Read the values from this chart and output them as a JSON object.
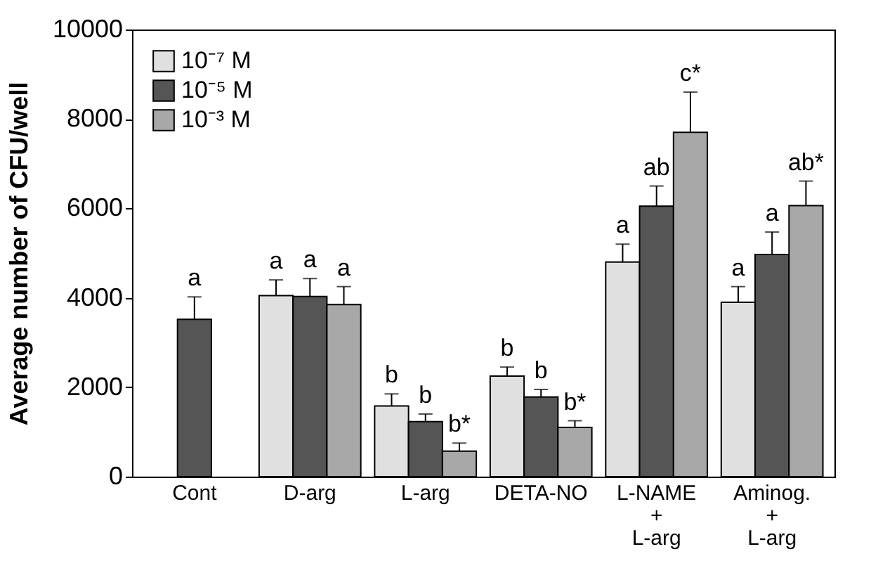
{
  "chart_data": {
    "type": "bar",
    "ylabel": "Average number of CFU/well",
    "categories": [
      "Cont",
      "D-arg",
      "L-arg",
      "DETA-NO",
      "L-NAME\n+\nL-arg",
      "Aminog.\n+\nL-arg"
    ],
    "ylim": [
      0,
      10000
    ],
    "yticks": [
      0,
      2000,
      4000,
      6000,
      8000,
      10000
    ],
    "legend": "top left",
    "series": [
      {
        "name": "10⁻⁷ M",
        "color": "#e0e0e0",
        "values": [
          null,
          4050,
          1580,
          2250,
          4800,
          3900
        ],
        "errors": [
          null,
          350,
          270,
          200,
          400,
          350
        ],
        "value_labels": [
          null,
          "a",
          "b",
          "b",
          "a",
          "a"
        ]
      },
      {
        "name": "10⁻⁵ M",
        "color": "#555555",
        "values": [
          3520,
          4030,
          1230,
          1780,
          6050,
          4970
        ],
        "errors": [
          500,
          400,
          170,
          170,
          450,
          500
        ],
        "value_labels": [
          "a",
          "a",
          "b",
          "b",
          "ab",
          "a"
        ]
      },
      {
        "name": "10⁻³ M",
        "color": "#a8a8a8",
        "values": [
          null,
          3850,
          570,
          1100,
          7700,
          6060
        ],
        "errors": [
          null,
          400,
          180,
          150,
          900,
          550
        ],
        "value_labels": [
          null,
          "a",
          "b*",
          "b*",
          "c*",
          "ab*"
        ]
      }
    ]
  }
}
